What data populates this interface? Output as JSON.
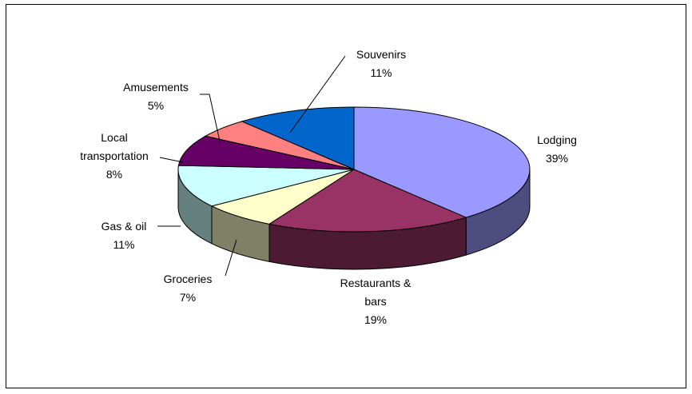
{
  "chart_data": {
    "type": "pie3d",
    "categories": [
      "Lodging",
      "Restaurants & bars",
      "Groceries",
      "Gas & oil",
      "Local transportation",
      "Amusements",
      "Souvenirs"
    ],
    "values": [
      39,
      19,
      7,
      11,
      8,
      5,
      11
    ],
    "value_labels": [
      "39%",
      "19%",
      "7%",
      "11%",
      "8%",
      "5%",
      "11%"
    ],
    "colors": [
      "#9999ff",
      "#993366",
      "#ffffcc",
      "#ccffff",
      "#660066",
      "#ff8080",
      "#0066cc"
    ],
    "side_colors": [
      "#4d4d80",
      "#4d1a33",
      "#808066",
      "#668080",
      "#330033",
      "#804040",
      "#003366"
    ]
  }
}
